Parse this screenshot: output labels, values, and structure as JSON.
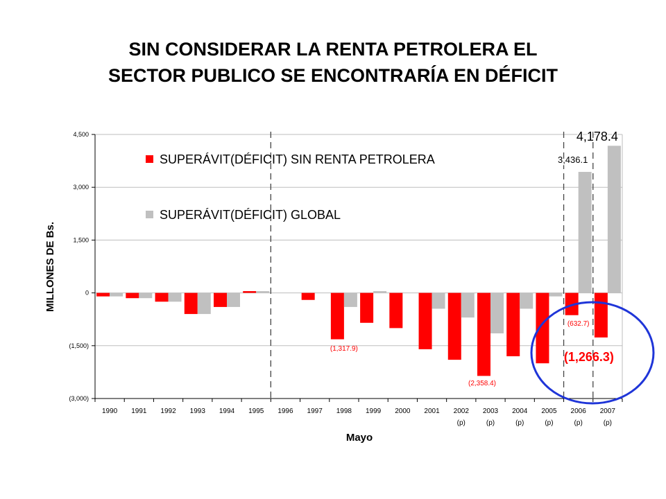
{
  "title": {
    "line1": "SIN CONSIDERAR LA RENTA PETROLERA EL",
    "line2": "SECTOR PUBLICO SE ENCONTRARÍA EN DÉFICIT"
  },
  "chart_data": {
    "type": "bar",
    "ylabel": "MILLONES DE Bs.",
    "xlabel": "Mayo",
    "ylim": [
      -3000,
      4500
    ],
    "yticks": [
      -3000,
      -1500,
      0,
      1500,
      3000,
      4500
    ],
    "ytick_labels": [
      "(3,000)",
      "(1,500)",
      "0",
      "1,500",
      "3,000",
      "4,500"
    ],
    "grid": true,
    "legend_position": "top-left",
    "categories": [
      "1990",
      "1991",
      "1992",
      "1993",
      "1994",
      "1995",
      "1996",
      "1997",
      "1998",
      "1999",
      "2000",
      "2001",
      "2002",
      "2003",
      "2004",
      "2005",
      "2006",
      "2007"
    ],
    "category_sublabels": [
      "",
      "",
      "",
      "",
      "",
      "",
      "",
      "",
      "",
      "",
      "",
      "",
      "(p)",
      "(p)",
      "(p)",
      "(p)",
      "(p)",
      "(p)"
    ],
    "series": [
      {
        "name": "SUPERÁVIT(DÉFICIT) SIN RENTA PETROLERA",
        "color": "#ff0000",
        "values": [
          -100,
          -150,
          -250,
          -600,
          -400,
          50,
          0,
          -200,
          -1317.9,
          -850,
          -1000,
          -1600,
          -1900,
          -2358.4,
          -1800,
          -2000,
          -632.7,
          -1266.3
        ]
      },
      {
        "name": "SUPERÁVIT(DÉFICIT) GLOBAL",
        "color": "#c0c0c0",
        "values": [
          -100,
          -150,
          -250,
          -600,
          -400,
          50,
          0,
          0,
          -400,
          50,
          0,
          -450,
          -700,
          -1150,
          -450,
          -100,
          3436.1,
          4178.4
        ]
      }
    ],
    "dashed_lines_after": [
      "1995",
      "2005",
      "2006"
    ],
    "annotations": [
      {
        "text": "(1,317.9)",
        "category": "1998",
        "color": "#ff0000",
        "size": "small"
      },
      {
        "text": "(2,358.4)",
        "category": "2003",
        "color": "#ff0000",
        "size": "small"
      },
      {
        "text": "(632.7)",
        "category": "2006",
        "color": "#ff0000",
        "size": "small"
      },
      {
        "text": "3,436.1",
        "category": "2006",
        "color": "#000000",
        "size": "medium"
      },
      {
        "text": "4,178.4",
        "category": "2007",
        "color": "#000000",
        "size": "large"
      },
      {
        "text": "(1,266.3)",
        "category": "2007",
        "color": "#ff0000",
        "size": "large"
      }
    ],
    "highlight": {
      "shape": "ellipse",
      "color": "#1f35d8",
      "around": "2006-2007"
    }
  }
}
